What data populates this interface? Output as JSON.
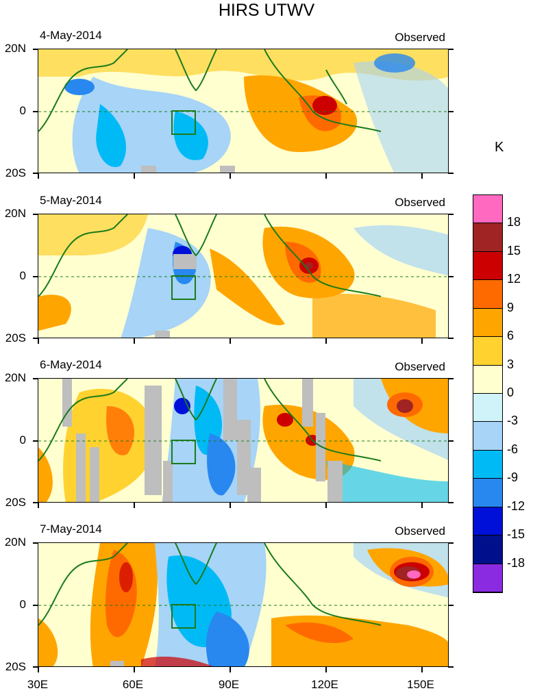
{
  "title": "HIRS UTWV",
  "panels": [
    {
      "date": "4-May-2014",
      "label": "Observed"
    },
    {
      "date": "5-May-2014",
      "label": "Observed"
    },
    {
      "date": "6-May-2014",
      "label": "Observed"
    },
    {
      "date": "7-May-2014",
      "label": "Observed"
    }
  ],
  "lat_labels": {
    "north": "20N",
    "equator": "0",
    "south": "20S"
  },
  "lon_labels": [
    "30E",
    "60E",
    "90E",
    "120E",
    "150E"
  ],
  "colorbar": {
    "unit": "K",
    "labels": [
      "18",
      "15",
      "12",
      "9",
      "6",
      "3",
      "0",
      "-3",
      "-6",
      "-9",
      "-12",
      "-15",
      "-18"
    ],
    "colors": [
      "#ff69c0",
      "#a02424",
      "#cc0000",
      "#ff6a00",
      "#ffa500",
      "#ffd230",
      "#ffffd0",
      "#cff3f9",
      "#a7d4f7",
      "#00baf5",
      "#2888f0",
      "#0010d8",
      "#00108c",
      "#8a2be2"
    ]
  }
}
